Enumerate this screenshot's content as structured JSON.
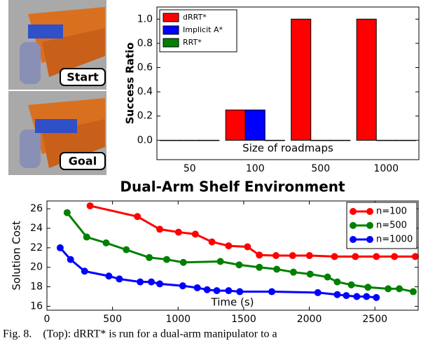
{
  "figure": {
    "images": [
      {
        "label": "Start"
      },
      {
        "label": "Goal"
      }
    ],
    "caption": "Fig. 8.    (Top): dRRT* is run for a dual-arm manipulator to a"
  },
  "chart_data": [
    {
      "type": "bar",
      "ylabel": "Success Ratio",
      "xlabel": "Size of roadmaps",
      "categories": [
        "50",
        "100",
        "500",
        "1000"
      ],
      "series": [
        {
          "name": "dRRT*",
          "color": "#ff0000",
          "values": [
            0,
            0.25,
            1,
            1
          ]
        },
        {
          "name": "Implicit A*",
          "color": "#0000ff",
          "values": [
            0,
            0.25,
            0,
            0
          ]
        },
        {
          "name": "RRT*",
          "color": "#008000",
          "values": [
            0,
            0,
            0,
            0
          ]
        }
      ],
      "ylim": [
        -0.16,
        1.1
      ],
      "yticks": [
        {
          "value": 0,
          "label": "0.0"
        },
        0.2,
        0.4,
        0.6,
        0.8,
        {
          "value": 1,
          "label": "1.0"
        }
      ],
      "legend": "upper-left"
    },
    {
      "type": "line",
      "title": "Dual-Arm Shelf Environment",
      "ylabel": "Solution Cost",
      "xlabel": "Time (s)",
      "series": [
        {
          "name": "n=100",
          "color": "#ff0000",
          "x": [
            329,
            690,
            860,
            1003,
            1131,
            1258,
            1385,
            1529,
            1619,
            1746,
            1873,
            2001,
            2192,
            2351,
            2511,
            2649,
            2808
          ],
          "values": [
            26.3,
            25.2,
            23.9,
            23.6,
            23.4,
            22.6,
            22.2,
            22.1,
            21.25,
            21.2,
            21.2,
            21.2,
            21.1,
            21.1,
            21.1,
            21.1,
            21.1
          ]
        },
        {
          "name": "n=500",
          "color": "#008000",
          "x": [
            154,
            303,
            451,
            605,
            780,
            913,
            1040,
            1322,
            1465,
            1619,
            1752,
            1879,
            2006,
            2139,
            2213,
            2320,
            2447,
            2601,
            2686,
            2792
          ],
          "values": [
            25.6,
            23.1,
            22.5,
            21.8,
            21.0,
            20.8,
            20.5,
            20.6,
            20.25,
            20.0,
            19.8,
            19.5,
            19.3,
            19.0,
            18.5,
            18.2,
            17.95,
            17.8,
            17.8,
            17.5
          ]
        },
        {
          "name": "n=1000",
          "color": "#0000ff",
          "x": [
            101,
            180,
            287,
            472,
            552,
            711,
            796,
            860,
            1035,
            1146,
            1221,
            1295,
            1385,
            1470,
            1714,
            2065,
            2213,
            2282,
            2362,
            2436,
            2511
          ],
          "values": [
            22.0,
            20.8,
            19.6,
            19.1,
            18.8,
            18.5,
            18.5,
            18.3,
            18.1,
            17.9,
            17.7,
            17.6,
            17.6,
            17.5,
            17.5,
            17.4,
            17.2,
            17.1,
            17.0,
            17.0,
            16.9
          ]
        }
      ],
      "xlim": [
        0,
        2830
      ],
      "xticks": [
        0,
        500,
        1000,
        1500,
        2000,
        2500
      ],
      "ylim": [
        15.6,
        26.8
      ],
      "yticks": [
        16,
        18,
        20,
        22,
        24,
        26
      ],
      "legend": "upper-right"
    }
  ]
}
